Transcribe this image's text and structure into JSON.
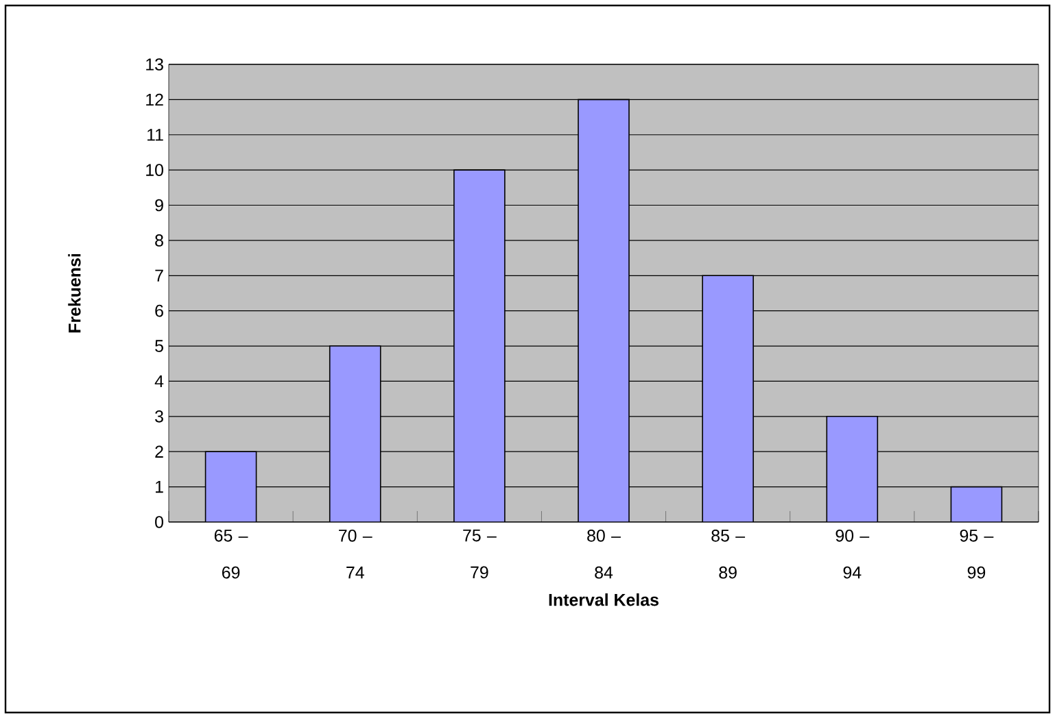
{
  "chart_data": {
    "type": "bar",
    "xlabel": "Interval Kelas",
    "ylabel": "Frekuensi",
    "categories": [
      "65 – 69",
      "70 – 74",
      "75 – 79",
      "80 – 84",
      "85 – 89",
      "90 – 94",
      "95 – 99"
    ],
    "values": [
      2,
      5,
      10,
      12,
      7,
      3,
      1
    ],
    "color": "#9999ff",
    "ylim": [
      0,
      13
    ],
    "yticks": [
      0,
      1,
      2,
      3,
      4,
      5,
      6,
      7,
      8,
      9,
      10,
      11,
      12,
      13
    ],
    "grid": "y"
  }
}
